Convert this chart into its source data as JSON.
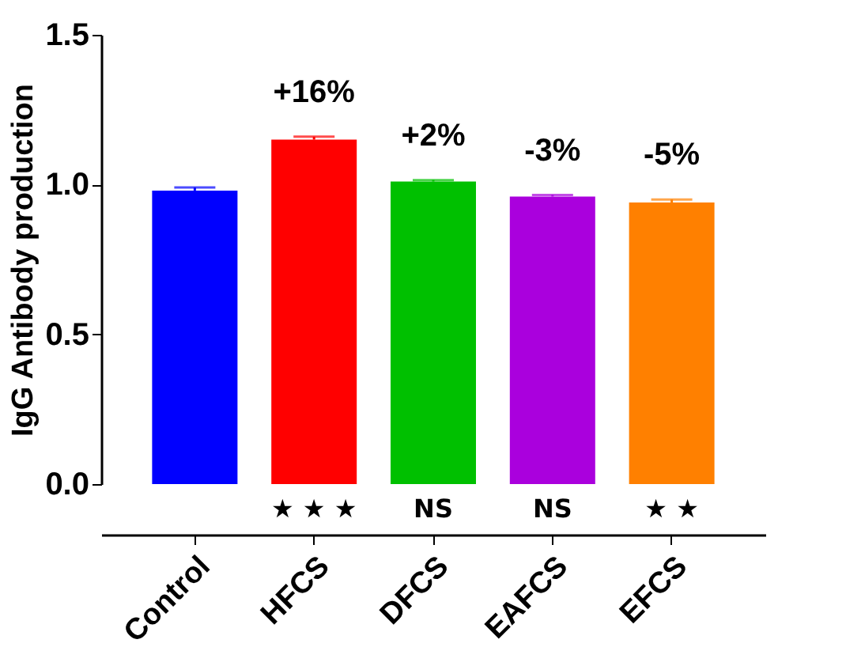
{
  "chart_data": {
    "type": "bar",
    "ylabel": "IgG Antibody production",
    "categories": [
      "Control",
      "HFCS",
      "DFCS",
      "EAFCS",
      "EFCS"
    ],
    "values": [
      0.98,
      1.15,
      1.01,
      0.96,
      0.94
    ],
    "colors": [
      "#0000ff",
      "#ff0000",
      "#00c000",
      "#aa00dd",
      "#ff8000"
    ],
    "errors": [
      [
        0.98,
        0.99
      ],
      [
        1.15,
        1.16
      ],
      [
        1.01,
        1.015
      ],
      [
        0.96,
        0.965
      ],
      [
        0.94,
        0.95
      ]
    ],
    "ylim": [
      0,
      1.5
    ],
    "yticks": [
      {
        "value": 0,
        "label": "0.0"
      },
      {
        "value": 0.5,
        "label": "0.5"
      },
      {
        "value": 1,
        "label": "1.0"
      },
      {
        "value": 1.5,
        "label": "1.5"
      }
    ],
    "grid": false,
    "legend": false,
    "annotations": [
      "+16%",
      "+2%",
      "-3%",
      "-5%",
      "★ ★ ★",
      "NS",
      "NS",
      "★ ★"
    ]
  }
}
